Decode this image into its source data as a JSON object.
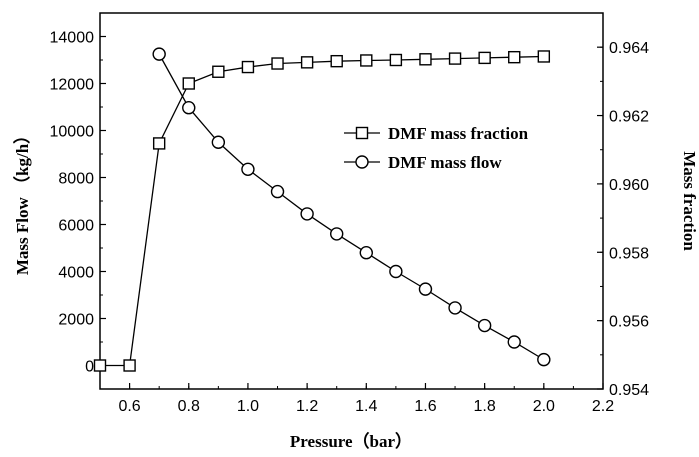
{
  "chart_data": {
    "type": "line",
    "xlabel": "Pressure（bar）",
    "ylabel_left": "Mass Flow （kg/h）",
    "ylabel_right": "Mass fraction",
    "xlim": [
      0.5,
      2.2
    ],
    "ylim_left": [
      -1000,
      15000
    ],
    "ylim_right": [
      0.954,
      0.965
    ],
    "x_ticks": [
      "0.6",
      "0.8",
      "1.0",
      "1.2",
      "1.4",
      "1.6",
      "1.8",
      "2.0",
      "2.2"
    ],
    "y_left_ticks": [
      "0",
      "2000",
      "4000",
      "6000",
      "8000",
      "10000",
      "12000",
      "14000"
    ],
    "y_right_ticks": [
      "0.954",
      "0.956",
      "0.958",
      "0.960",
      "0.962",
      "0.964"
    ],
    "grid": false,
    "legend_position": "top-right",
    "series": [
      {
        "name": "DMF mass fraction",
        "marker": "square",
        "axis": "right",
        "x": [
          0.5,
          0.6,
          0.7,
          0.8,
          0.9,
          1.0,
          1.1,
          1.2,
          1.3,
          1.4,
          1.5,
          1.6,
          1.7,
          1.8,
          1.9,
          2.0
        ],
        "values": [
          0,
          0,
          9450,
          12000,
          12500,
          12700,
          12850,
          12900,
          12950,
          12980,
          13000,
          13030,
          13060,
          13090,
          13120,
          13150
        ]
      },
      {
        "name": "DMF mass flow",
        "marker": "circle",
        "axis": "left",
        "x": [
          0.7,
          0.8,
          0.9,
          1.0,
          1.1,
          1.2,
          1.3,
          1.4,
          1.5,
          1.6,
          1.7,
          1.8,
          1.9,
          2.0
        ],
        "values": [
          13250,
          10970,
          9500,
          8350,
          7400,
          6450,
          5600,
          4800,
          4000,
          3250,
          2450,
          1700,
          1000,
          250
        ]
      }
    ]
  }
}
